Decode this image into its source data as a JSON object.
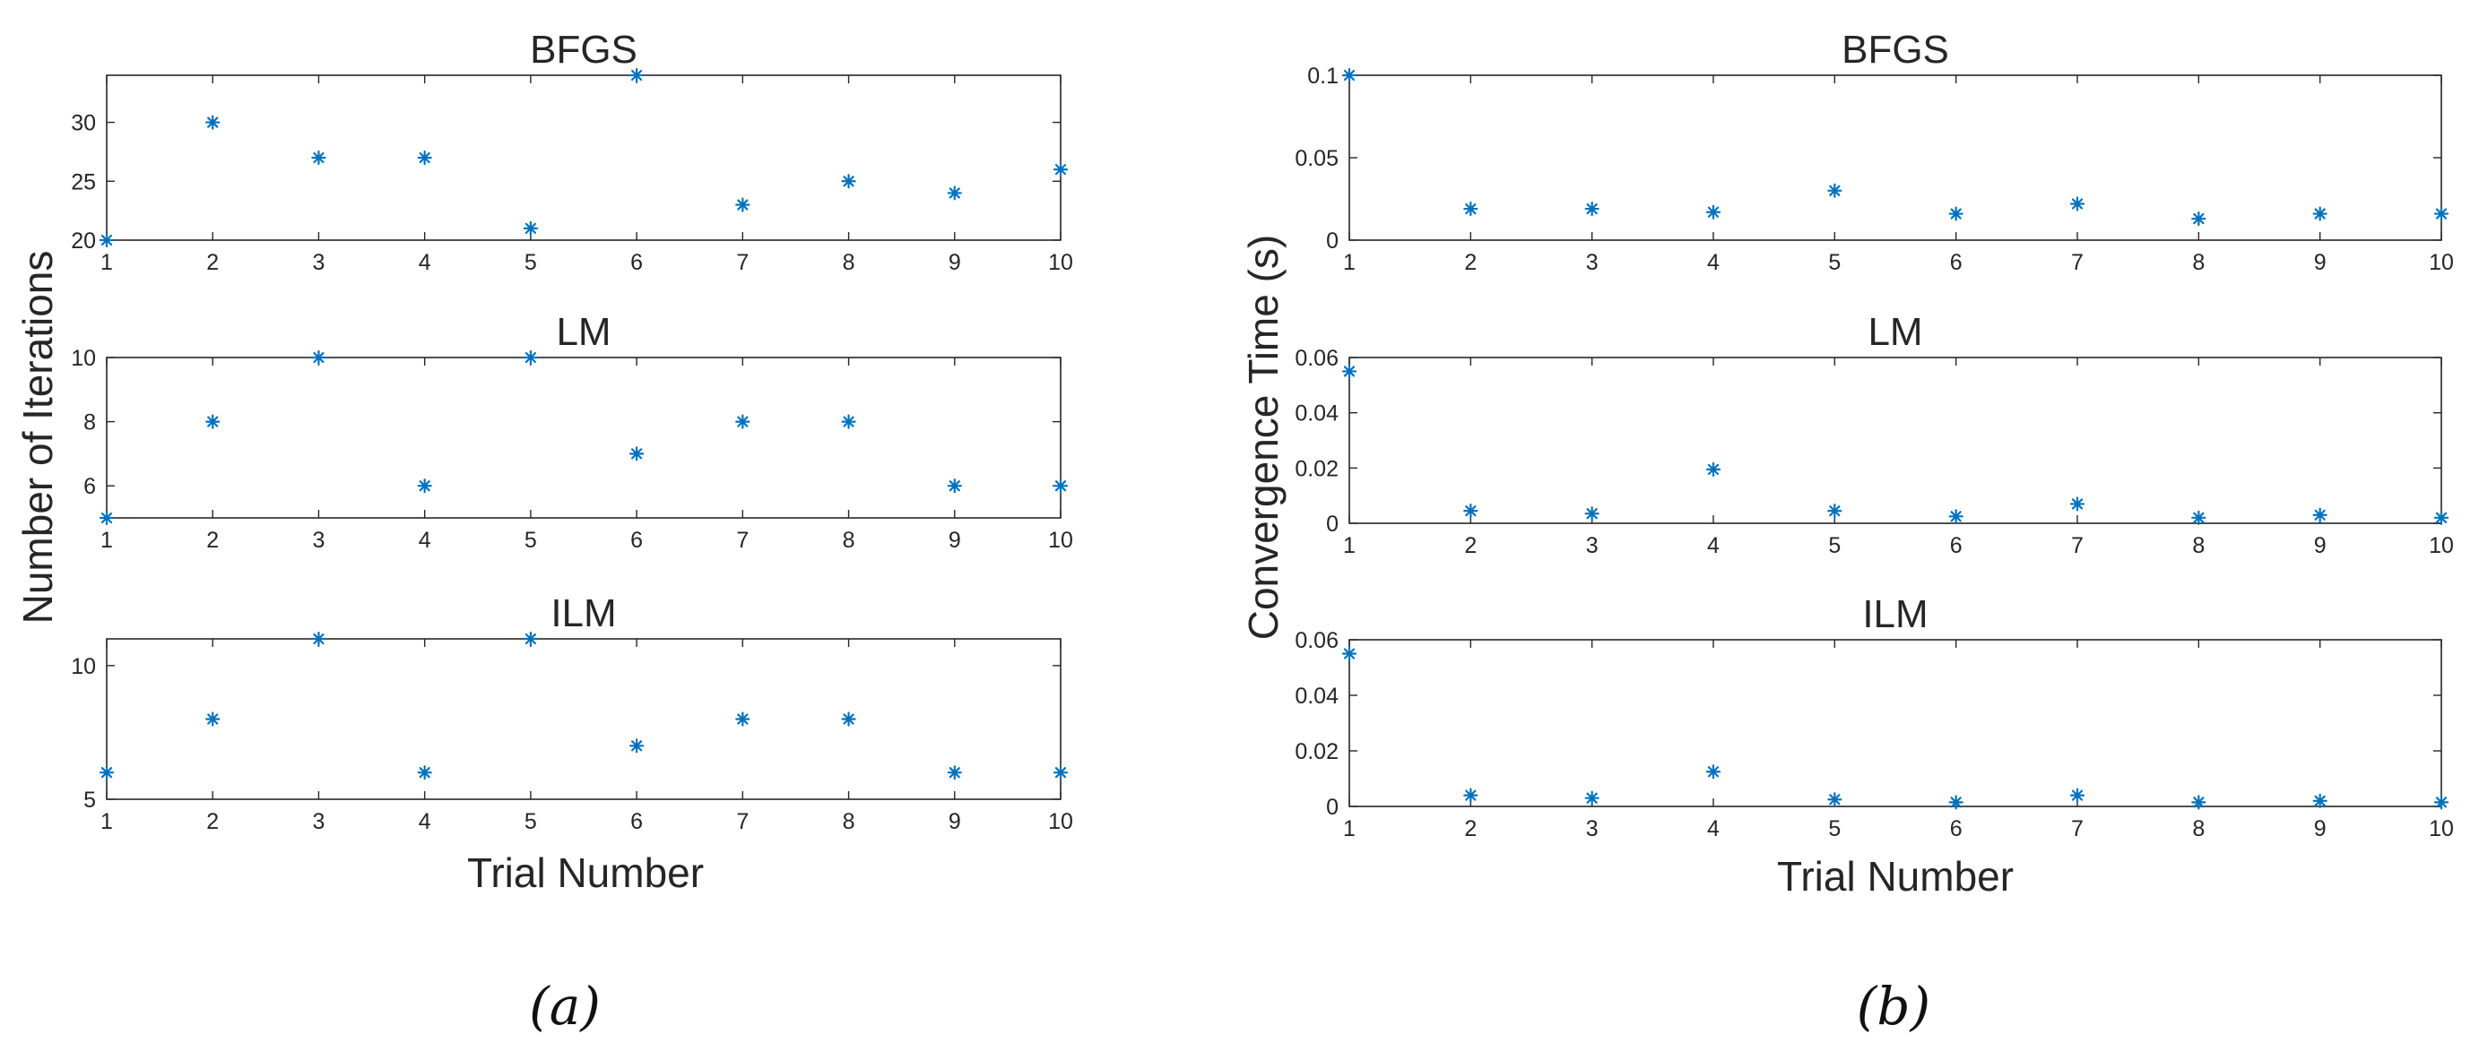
{
  "chart_data": [
    {
      "type": "scatter",
      "title": "BFGS",
      "xlabel": "",
      "ylabel": "",
      "x": [
        1,
        2,
        3,
        4,
        5,
        6,
        7,
        8,
        9,
        10
      ],
      "y": [
        20,
        30,
        27,
        27,
        21,
        34,
        23,
        25,
        24,
        26
      ],
      "xlim": [
        1,
        10
      ],
      "ylim": [
        20,
        34
      ],
      "xticks": [
        "1",
        "2",
        "3",
        "4",
        "5",
        "6",
        "7",
        "8",
        "9",
        "10"
      ],
      "yticks": [
        20,
        25,
        30
      ],
      "ytick_labels": [
        "20",
        "25",
        "30"
      ],
      "marker": "asterisk",
      "color": "#0072BD",
      "grid": false
    },
    {
      "type": "scatter",
      "title": "LM",
      "xlabel": "",
      "ylabel": "Number of Iterations",
      "x": [
        1,
        2,
        3,
        4,
        5,
        6,
        7,
        8,
        9,
        10
      ],
      "y": [
        5,
        8,
        10,
        6,
        10,
        7,
        8,
        8,
        6,
        6
      ],
      "xlim": [
        1,
        10
      ],
      "ylim": [
        5,
        10
      ],
      "xticks": [
        "1",
        "2",
        "3",
        "4",
        "5",
        "6",
        "7",
        "8",
        "9",
        "10"
      ],
      "yticks": [
        6,
        8,
        10
      ],
      "ytick_labels": [
        "6",
        "8",
        "10"
      ],
      "marker": "asterisk",
      "color": "#0072BD",
      "grid": false
    },
    {
      "type": "scatter",
      "title": "ILM",
      "xlabel": "Trial Number",
      "ylabel": "",
      "x": [
        1,
        2,
        3,
        4,
        5,
        6,
        7,
        8,
        9,
        10
      ],
      "y": [
        6,
        8,
        11,
        6,
        11,
        7,
        8,
        8,
        6,
        6
      ],
      "xlim": [
        1,
        10
      ],
      "ylim": [
        5,
        11
      ],
      "xticks": [
        "1",
        "2",
        "3",
        "4",
        "5",
        "6",
        "7",
        "8",
        "9",
        "10"
      ],
      "yticks": [
        5,
        10
      ],
      "ytick_labels": [
        "5",
        "10"
      ],
      "marker": "asterisk",
      "color": "#0072BD",
      "grid": false
    },
    {
      "type": "scatter",
      "title": "BFGS",
      "xlabel": "",
      "ylabel": "",
      "x": [
        1,
        2,
        3,
        4,
        5,
        6,
        7,
        8,
        9,
        10
      ],
      "y": [
        0.1,
        0.019,
        0.019,
        0.017,
        0.03,
        0.016,
        0.022,
        0.013,
        0.016,
        0.016
      ],
      "xlim": [
        1,
        10
      ],
      "ylim": [
        0,
        0.1
      ],
      "xticks": [
        "1",
        "2",
        "3",
        "4",
        "5",
        "6",
        "7",
        "8",
        "9",
        "10"
      ],
      "yticks": [
        0,
        0.05,
        0.1
      ],
      "ytick_labels": [
        "0",
        "0.05",
        "0.1"
      ],
      "marker": "asterisk",
      "color": "#0072BD",
      "grid": false
    },
    {
      "type": "scatter",
      "title": "LM",
      "xlabel": "",
      "ylabel": "Convergence Time (s)",
      "x": [
        1,
        2,
        3,
        4,
        5,
        6,
        7,
        8,
        9,
        10
      ],
      "y": [
        0.055,
        0.0045,
        0.0035,
        0.0195,
        0.0045,
        0.0025,
        0.007,
        0.002,
        0.003,
        0.002
      ],
      "xlim": [
        1,
        10
      ],
      "ylim": [
        0,
        0.06
      ],
      "xticks": [
        "1",
        "2",
        "3",
        "4",
        "5",
        "6",
        "7",
        "8",
        "9",
        "10"
      ],
      "yticks": [
        0,
        0.02,
        0.04,
        0.06
      ],
      "ytick_labels": [
        "0",
        "0.02",
        "0.04",
        "0.06"
      ],
      "marker": "asterisk",
      "color": "#0072BD",
      "grid": false
    },
    {
      "type": "scatter",
      "title": "ILM",
      "xlabel": "Trial Number",
      "ylabel": "",
      "x": [
        1,
        2,
        3,
        4,
        5,
        6,
        7,
        8,
        9,
        10
      ],
      "y": [
        0.055,
        0.004,
        0.003,
        0.0125,
        0.0025,
        0.0015,
        0.004,
        0.0015,
        0.002,
        0.0015
      ],
      "xlim": [
        1,
        10
      ],
      "ylim": [
        0,
        0.06
      ],
      "xticks": [
        "1",
        "2",
        "3",
        "4",
        "5",
        "6",
        "7",
        "8",
        "9",
        "10"
      ],
      "yticks": [
        0,
        0.02,
        0.04,
        0.06
      ],
      "ytick_labels": [
        "0",
        "0.02",
        "0.04",
        "0.06"
      ],
      "marker": "asterisk",
      "color": "#0072BD",
      "grid": false
    }
  ],
  "captions": [
    "(a)",
    "(b)"
  ]
}
